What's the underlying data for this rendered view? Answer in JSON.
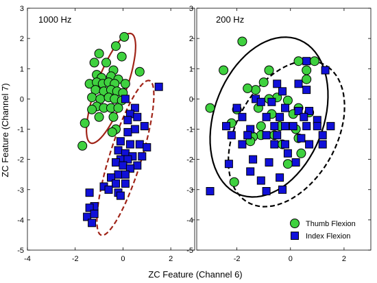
{
  "chart_data": {
    "type": "scatter",
    "xlabel": "ZC Feature (Channel 6)",
    "ylabel": "ZC Feature (Channel 7)",
    "legend": {
      "placement": "bottom-right of right panel",
      "entries": [
        {
          "name": "Thumb Flexion",
          "marker": "circle",
          "color": "#3fd13f"
        },
        {
          "name": "Index Flexion",
          "marker": "square",
          "color": "#1010d8"
        }
      ]
    },
    "panels": [
      {
        "title": "1000 Hz",
        "xlim": [
          -4,
          3
        ],
        "ylim": [
          -5,
          3
        ],
        "xticks": [
          -4,
          -2,
          0,
          2
        ],
        "yticks": [
          -5,
          -4,
          -3,
          -2,
          -1,
          0,
          1,
          2,
          3
        ],
        "grid": false,
        "series": [
          {
            "name": "Thumb Flexion",
            "points": [
              [
                0.05,
                2.05
              ],
              [
                -0.3,
                1.75
              ],
              [
                -1.0,
                1.5
              ],
              [
                -0.05,
                1.4
              ],
              [
                -1.2,
                1.2
              ],
              [
                -0.7,
                1.2
              ],
              [
                -0.4,
                0.95
              ],
              [
                0.7,
                0.9
              ],
              [
                -1.1,
                0.8
              ],
              [
                -0.9,
                0.7
              ],
              [
                -0.5,
                0.75
              ],
              [
                -0.2,
                0.65
              ],
              [
                -1.4,
                0.5
              ],
              [
                -1.1,
                0.55
              ],
              [
                -0.85,
                0.5
              ],
              [
                -0.6,
                0.55
              ],
              [
                -0.35,
                0.5
              ],
              [
                0.1,
                0.5
              ],
              [
                -1.15,
                0.3
              ],
              [
                -0.8,
                0.25
              ],
              [
                -0.5,
                0.3
              ],
              [
                -0.25,
                0.25
              ],
              [
                0.0,
                0.2
              ],
              [
                -1.3,
                0.05
              ],
              [
                -0.95,
                0.0
              ],
              [
                -0.6,
                0.05
              ],
              [
                -0.35,
                0.0
              ],
              [
                -0.05,
                -0.05
              ],
              [
                -1.1,
                -0.25
              ],
              [
                -1.3,
                -0.35
              ],
              [
                -0.8,
                -0.3
              ],
              [
                -0.5,
                -0.3
              ],
              [
                -0.2,
                -0.3
              ],
              [
                -1.0,
                -0.6
              ],
              [
                -0.4,
                -0.6
              ],
              [
                -1.6,
                -0.8
              ],
              [
                -0.3,
                -1.0
              ],
              [
                -0.45,
                -1.1
              ],
              [
                -1.7,
                -1.55
              ]
            ]
          },
          {
            "name": "Index Flexion",
            "points": [
              [
                1.5,
                0.4
              ],
              [
                0.1,
                0.0
              ],
              [
                0.5,
                -0.3
              ],
              [
                0.3,
                -0.5
              ],
              [
                0.6,
                -0.6
              ],
              [
                0.2,
                -0.7
              ],
              [
                0.9,
                -0.9
              ],
              [
                0.5,
                -1.0
              ],
              [
                0.2,
                -1.1
              ],
              [
                -0.1,
                -1.4
              ],
              [
                0.3,
                -1.5
              ],
              [
                0.7,
                -1.5
              ],
              [
                1.0,
                -1.6
              ],
              [
                -0.2,
                -1.7
              ],
              [
                0.1,
                -1.8
              ],
              [
                0.4,
                -1.9
              ],
              [
                0.8,
                -1.9
              ],
              [
                -0.1,
                -2.0
              ],
              [
                0.2,
                -2.0
              ],
              [
                0.6,
                -2.2
              ],
              [
                -0.3,
                -2.1
              ],
              [
                0.0,
                -2.2
              ],
              [
                0.3,
                -2.3
              ],
              [
                -0.2,
                -2.5
              ],
              [
                0.1,
                -2.5
              ],
              [
                -0.5,
                -2.6
              ],
              [
                -0.3,
                -2.8
              ],
              [
                0.1,
                -2.8
              ],
              [
                -0.8,
                -2.9
              ],
              [
                -0.6,
                -3.0
              ],
              [
                -0.2,
                -3.1
              ],
              [
                -0.1,
                -3.2
              ],
              [
                -1.4,
                -3.1
              ],
              [
                -1.2,
                -3.55
              ],
              [
                -1.4,
                -3.6
              ],
              [
                -1.5,
                -3.9
              ],
              [
                -1.2,
                -3.8
              ],
              [
                -1.3,
                -4.1
              ]
            ]
          }
        ],
        "ellipses": [
          {
            "series": "Thumb Flexion",
            "cx": -0.5,
            "cy": 0.35,
            "rx": 2.0,
            "ry": 0.6,
            "angle_deg": 64,
            "style": "solid",
            "color": "#a02418"
          },
          {
            "series": "Index Flexion",
            "cx": 0.1,
            "cy": -1.95,
            "rx": 2.75,
            "ry": 0.65,
            "angle_deg": 68,
            "style": "dashed",
            "color": "#a02418"
          }
        ]
      },
      {
        "title": "200 Hz",
        "xlim": [
          -3.5,
          3
        ],
        "ylim": [
          -5,
          3
        ],
        "xticks": [
          -2,
          0,
          2
        ],
        "yticks": [
          -5,
          -4,
          -3,
          -2,
          -1,
          0,
          1,
          2,
          3
        ],
        "grid": false,
        "series": [
          {
            "name": "Thumb Flexion",
            "points": [
              [
                -1.8,
                1.9
              ],
              [
                -2.5,
                0.95
              ],
              [
                0.3,
                1.25
              ],
              [
                0.9,
                1.25
              ],
              [
                -0.8,
                0.95
              ],
              [
                0.6,
                0.95
              ],
              [
                -1.0,
                0.55
              ],
              [
                0.6,
                0.65
              ],
              [
                -1.3,
                0.3
              ],
              [
                -1.6,
                0.35
              ],
              [
                -0.5,
                0.05
              ],
              [
                -0.8,
                0.0
              ],
              [
                -0.1,
                -0.05
              ],
              [
                -3.0,
                -0.3
              ],
              [
                -2.0,
                -0.35
              ],
              [
                -1.2,
                -0.3
              ],
              [
                -0.7,
                -0.5
              ],
              [
                0.3,
                -0.3
              ],
              [
                0.1,
                -0.5
              ],
              [
                0.7,
                -0.45
              ],
              [
                -2.2,
                -0.8
              ],
              [
                -0.4,
                -0.9
              ],
              [
                -1.1,
                -0.9
              ],
              [
                -1.1,
                -1.2
              ],
              [
                0.2,
                -1.0
              ],
              [
                -1.4,
                -1.25
              ],
              [
                -0.6,
                -1.2
              ],
              [
                0.3,
                -1.3
              ],
              [
                -0.3,
                -1.5
              ],
              [
                -1.5,
                -1.4
              ],
              [
                0.4,
                -1.8
              ],
              [
                -0.1,
                -2.15
              ],
              [
                -2.1,
                -2.75
              ]
            ]
          },
          {
            "name": "Index Flexion",
            "points": [
              [
                0.6,
                1.25
              ],
              [
                1.3,
                0.95
              ],
              [
                0.3,
                0.5
              ],
              [
                0.6,
                0.3
              ],
              [
                -0.5,
                0.5
              ],
              [
                -0.3,
                0.25
              ],
              [
                -1.3,
                0.0
              ],
              [
                -1.1,
                -0.1
              ],
              [
                -0.7,
                -0.1
              ],
              [
                -2.0,
                -0.3
              ],
              [
                -0.2,
                -0.3
              ],
              [
                0.3,
                -0.4
              ],
              [
                0.7,
                -0.4
              ],
              [
                -1.8,
                -0.6
              ],
              [
                -0.9,
                -0.6
              ],
              [
                -0.4,
                -0.6
              ],
              [
                0.5,
                -0.6
              ],
              [
                1.0,
                -0.7
              ],
              [
                -2.4,
                -0.9
              ],
              [
                -1.5,
                -1.0
              ],
              [
                -0.6,
                -0.9
              ],
              [
                -0.2,
                -0.9
              ],
              [
                0.1,
                -0.9
              ],
              [
                0.6,
                -0.9
              ],
              [
                1.0,
                -0.9
              ],
              [
                1.5,
                -0.9
              ],
              [
                -2.2,
                -1.2
              ],
              [
                -1.6,
                -1.2
              ],
              [
                -0.9,
                -1.2
              ],
              [
                -0.5,
                -1.2
              ],
              [
                0.4,
                -1.3
              ],
              [
                1.2,
                -1.2
              ],
              [
                -1.8,
                -1.5
              ],
              [
                -0.6,
                -1.5
              ],
              [
                -0.2,
                -1.5
              ],
              [
                0.7,
                -1.5
              ],
              [
                1.2,
                -1.5
              ],
              [
                -0.1,
                -1.8
              ],
              [
                -1.4,
                -2.0
              ],
              [
                -2.3,
                -2.15
              ],
              [
                -0.8,
                -2.1
              ],
              [
                0.2,
                -2.1
              ],
              [
                -1.5,
                -2.4
              ],
              [
                -0.4,
                -2.6
              ],
              [
                -1.1,
                -2.7
              ],
              [
                -0.3,
                -3.0
              ],
              [
                -3.0,
                -3.05
              ],
              [
                -0.9,
                -3.05
              ]
            ]
          }
        ],
        "ellipses": [
          {
            "series": "Thumb Flexion",
            "cx": -0.8,
            "cy": -0.6,
            "rx": 2.8,
            "ry": 2.0,
            "angle_deg": 62,
            "style": "solid",
            "color": "#000000"
          },
          {
            "series": "Index Flexion",
            "cx": -0.15,
            "cy": -1.15,
            "rx": 2.7,
            "ry": 1.8,
            "angle_deg": 53,
            "style": "dashed",
            "color": "#000000"
          }
        ]
      }
    ]
  }
}
